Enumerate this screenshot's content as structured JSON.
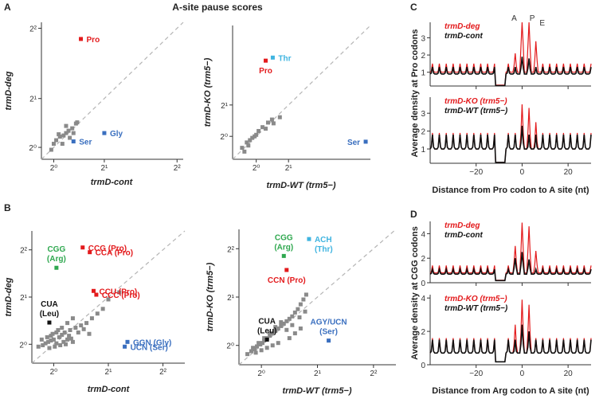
{
  "figure_title": "A-site pause scores",
  "panel_letters": [
    "A",
    "B",
    "C",
    "D"
  ],
  "colors": {
    "pro": "#e31a1c",
    "thr": "#3fb4e0",
    "ser": "#3a6fbf",
    "arg": "#2fa84f",
    "leu": "#111111",
    "grey": "#8a8a8a",
    "diag": "#b5b5b5",
    "ko_line": "#e31a1c",
    "wt_line": "#111111"
  },
  "chart_data": [
    {
      "id": "A1",
      "type": "scatter",
      "xlabel": "trmD-cont",
      "ylabel": "trmD-deg",
      "xlim": [
        0.9,
        2.05
      ],
      "ylim": [
        0.9,
        2.05
      ],
      "xticks": [
        {
          "v": 1,
          "label": "2⁰"
        },
        {
          "v": 1.41,
          "label": "2¹"
        },
        {
          "v": 2,
          "label": "2²"
        }
      ],
      "yticks": [
        {
          "v": 1,
          "label": "2⁰"
        },
        {
          "v": 1.41,
          "label": "2¹"
        },
        {
          "v": 2,
          "label": "2²"
        }
      ],
      "grey_points": [
        [
          0.98,
          0.98
        ],
        [
          1.0,
          1.03
        ],
        [
          1.02,
          1.06
        ],
        [
          1.05,
          1.09
        ],
        [
          1.08,
          1.1
        ],
        [
          1.12,
          1.14
        ],
        [
          1.1,
          1.18
        ],
        [
          1.15,
          1.16
        ],
        [
          1.18,
          1.2
        ],
        [
          1.04,
          1.11
        ],
        [
          1.07,
          1.03
        ],
        [
          1.13,
          1.08
        ],
        [
          1.19,
          1.21
        ],
        [
          1.1,
          1.12
        ],
        [
          1.16,
          1.12
        ]
      ],
      "labeled_points": [
        {
          "label": "Pro",
          "x": 1.22,
          "y": 1.91,
          "color": "#e31a1c",
          "label_pos": "right"
        },
        {
          "label": "Gly",
          "x": 1.41,
          "y": 1.12,
          "color": "#3a6fbf",
          "label_pos": "right"
        },
        {
          "label": "Ser",
          "x": 1.16,
          "y": 1.05,
          "color": "#3a6fbf",
          "label_pos": "right"
        }
      ]
    },
    {
      "id": "A2",
      "type": "scatter",
      "xlabel": "trmD-WT (trm5−)",
      "ylabel": "trmD-KO (trm5−)",
      "xlim": [
        0.7,
        2.45
      ],
      "ylim": [
        0.7,
        2.45
      ],
      "xticks": [
        {
          "v": 1,
          "label": "2⁰"
        },
        {
          "v": 1.41,
          "label": "2¹"
        }
      ],
      "yticks": [
        {
          "v": 1,
          "label": "2⁰"
        },
        {
          "v": 1.41,
          "label": "2¹"
        }
      ],
      "grey_points": [
        [
          0.82,
          0.85
        ],
        [
          0.88,
          0.92
        ],
        [
          0.92,
          0.95
        ],
        [
          0.95,
          0.98
        ],
        [
          0.98,
          1.0
        ],
        [
          1.0,
          1.02
        ],
        [
          0.9,
          0.88
        ],
        [
          1.03,
          1.07
        ],
        [
          1.08,
          1.12
        ],
        [
          1.15,
          1.18
        ],
        [
          1.2,
          1.22
        ],
        [
          1.22,
          1.17
        ],
        [
          1.3,
          1.25
        ],
        [
          0.85,
          0.8
        ],
        [
          1.12,
          1.1
        ]
      ],
      "labeled_points": [
        {
          "label": "Thr",
          "x": 1.21,
          "y": 2.03,
          "color": "#3fb4e0",
          "label_pos": "right"
        },
        {
          "label": "Pro",
          "x": 1.12,
          "y": 1.99,
          "color": "#e31a1c",
          "label_pos": "below"
        },
        {
          "label": "Ser",
          "x": 2.39,
          "y": 0.93,
          "color": "#3a6fbf",
          "label_pos": "left"
        }
      ]
    },
    {
      "id": "B1",
      "type": "scatter",
      "xlabel": "trmD-cont",
      "ylabel": "trmD-deg",
      "xlim": [
        0.6,
        3.4
      ],
      "ylim": [
        0.6,
        3.4
      ],
      "xticks": [
        {
          "v": 1,
          "label": "2⁰"
        },
        {
          "v": 2,
          "label": "2¹"
        },
        {
          "v": 3,
          "label": "2²"
        }
      ],
      "yticks": [
        {
          "v": 1,
          "label": "2⁰"
        },
        {
          "v": 2,
          "label": "2¹"
        },
        {
          "v": 3,
          "label": "2²"
        }
      ],
      "grey_points": [
        [
          0.72,
          0.95
        ],
        [
          0.8,
          0.98
        ],
        [
          0.85,
          1.02
        ],
        [
          0.9,
          1.05
        ],
        [
          0.95,
          1.08
        ],
        [
          1.0,
          1.1
        ],
        [
          1.05,
          1.02
        ],
        [
          1.1,
          1.15
        ],
        [
          1.15,
          1.2
        ],
        [
          1.2,
          1.25
        ],
        [
          1.25,
          1.1
        ],
        [
          1.3,
          1.3
        ],
        [
          1.35,
          1.05
        ],
        [
          1.4,
          1.35
        ],
        [
          1.5,
          1.4
        ],
        [
          1.6,
          1.45
        ],
        [
          1.7,
          1.55
        ],
        [
          1.8,
          1.65
        ],
        [
          1.9,
          1.75
        ],
        [
          2.0,
          1.95
        ],
        [
          2.2,
          2.1
        ],
        [
          0.95,
          1.18
        ],
        [
          1.05,
          1.25
        ],
        [
          1.15,
          1.35
        ],
        [
          1.25,
          1.45
        ],
        [
          1.35,
          1.55
        ],
        [
          0.78,
          1.1
        ],
        [
          0.88,
          1.15
        ],
        [
          0.98,
          1.22
        ],
        [
          1.08,
          1.3
        ],
        [
          1.18,
          1.05
        ],
        [
          1.28,
          1.18
        ],
        [
          1.45,
          1.25
        ],
        [
          1.55,
          1.32
        ],
        [
          1.65,
          1.22
        ],
        [
          0.92,
          0.92
        ],
        [
          1.02,
          0.95
        ],
        [
          1.12,
          0.98
        ],
        [
          1.22,
          1.0
        ],
        [
          1.32,
          1.12
        ]
      ],
      "labeled_points": [
        {
          "label": "CGG",
          "label2": "(Arg)",
          "x": 1.05,
          "y": 2.62,
          "color": "#2fa84f",
          "label_pos": "above"
        },
        {
          "label": "CCG (Pro)",
          "x": 1.53,
          "y": 3.05,
          "color": "#e31a1c",
          "label_pos": "right"
        },
        {
          "label": "CCA (Pro)",
          "x": 1.66,
          "y": 2.95,
          "color": "#e31a1c",
          "label_pos": "right"
        },
        {
          "label": "CCU (Pro)",
          "x": 1.73,
          "y": 2.13,
          "color": "#e31a1c",
          "label_pos": "right"
        },
        {
          "label": "CCC (Pro)",
          "x": 1.78,
          "y": 2.05,
          "color": "#e31a1c",
          "label_pos": "right"
        },
        {
          "label": "CUA",
          "label2": "(Leu)",
          "x": 0.92,
          "y": 1.46,
          "color": "#111111",
          "label_pos": "above"
        },
        {
          "label": "GGN (Gly)",
          "x": 2.35,
          "y": 1.05,
          "color": "#3a6fbf",
          "label_pos": "right"
        },
        {
          "label": "UCN (Ser)",
          "x": 2.3,
          "y": 0.95,
          "color": "#3a6fbf",
          "label_pos": "right"
        }
      ]
    },
    {
      "id": "B2",
      "type": "scatter",
      "xlabel": "trmD-WT (trm5−)",
      "ylabel": "trmD-KO (trm5−)",
      "xlim": [
        0.6,
        3.4
      ],
      "ylim": [
        0.6,
        3.4
      ],
      "xticks": [
        {
          "v": 1,
          "label": "2⁰"
        },
        {
          "v": 2,
          "label": "2¹"
        },
        {
          "v": 3,
          "label": "2²"
        }
      ],
      "yticks": [
        {
          "v": 1,
          "label": "2⁰"
        },
        {
          "v": 2,
          "label": "2¹"
        },
        {
          "v": 3,
          "label": "2²"
        }
      ],
      "grey_points": [
        [
          0.75,
          0.82
        ],
        [
          0.82,
          0.88
        ],
        [
          0.88,
          0.92
        ],
        [
          0.92,
          0.98
        ],
        [
          0.98,
          1.02
        ],
        [
          1.02,
          1.05
        ],
        [
          1.05,
          1.1
        ],
        [
          1.1,
          1.15
        ],
        [
          1.15,
          1.2
        ],
        [
          1.2,
          1.25
        ],
        [
          1.25,
          1.3
        ],
        [
          1.3,
          1.35
        ],
        [
          1.35,
          1.4
        ],
        [
          1.4,
          1.45
        ],
        [
          1.45,
          1.5
        ],
        [
          1.5,
          1.55
        ],
        [
          1.55,
          1.6
        ],
        [
          1.6,
          1.68
        ],
        [
          1.65,
          1.75
        ],
        [
          1.7,
          1.85
        ],
        [
          1.75,
          1.95
        ],
        [
          1.8,
          2.05
        ],
        [
          0.85,
          0.95
        ],
        [
          0.95,
          1.05
        ],
        [
          1.05,
          1.15
        ],
        [
          1.15,
          1.25
        ],
        [
          1.25,
          1.38
        ],
        [
          1.35,
          1.48
        ],
        [
          1.45,
          1.32
        ],
        [
          1.55,
          1.42
        ],
        [
          0.9,
          0.85
        ],
        [
          1.0,
          0.9
        ],
        [
          1.1,
          0.95
        ],
        [
          1.2,
          1.0
        ],
        [
          1.3,
          1.05
        ],
        [
          1.5,
          1.15
        ],
        [
          1.6,
          1.25
        ],
        [
          1.7,
          1.35
        ],
        [
          1.78,
          1.7
        ],
        [
          1.68,
          1.58
        ]
      ],
      "labeled_points": [
        {
          "label": "ACH",
          "label2": "(Thr)",
          "x": 1.85,
          "y": 3.2,
          "color": "#3fb4e0",
          "label_pos": "right"
        },
        {
          "label": "CGG",
          "label2": "(Arg)",
          "x": 1.4,
          "y": 2.85,
          "color": "#2fa84f",
          "label_pos": "above"
        },
        {
          "label": "CCN (Pro)",
          "x": 1.45,
          "y": 2.56,
          "color": "#e31a1c",
          "label_pos": "below"
        },
        {
          "label": "CUA",
          "label2": "(Leu)",
          "x": 1.1,
          "y": 1.12,
          "color": "#111111",
          "label_pos": "above"
        },
        {
          "label": "AGY/UCN",
          "label2": "(Ser)",
          "x": 2.2,
          "y": 1.1,
          "color": "#3a6fbf",
          "label_pos": "above"
        }
      ]
    },
    {
      "id": "C1",
      "type": "line",
      "ylabel": "Average density at Pro codons",
      "xlabel": "",
      "xlim": [
        -40,
        30
      ],
      "ylim": [
        0.2,
        3.9
      ],
      "yticks": [
        1,
        2,
        3
      ],
      "xticks": [
        -20,
        0,
        20
      ],
      "legend": [
        "trmD-deg",
        "trmD-cont"
      ],
      "peak_labels": [
        {
          "label": "A",
          "x": 0
        },
        {
          "label": "P",
          "x": 3
        },
        {
          "label": "E",
          "x": 6
        }
      ],
      "series": [
        {
          "name": "trmD-deg",
          "color": "#e31a1c",
          "amp": 0.5,
          "base": 1.0,
          "peaks": [
            [
              0,
              2.9
            ],
            [
              3,
              2.7
            ],
            [
              6,
              1.3
            ],
            [
              -3,
              0.6
            ]
          ]
        },
        {
          "name": "trmD-cont",
          "color": "#111111",
          "amp": 0.4,
          "base": 0.9,
          "peaks": [
            [
              0,
              0.6
            ],
            [
              3,
              0.5
            ]
          ]
        }
      ]
    },
    {
      "id": "C2",
      "type": "line",
      "ylabel": "",
      "xlabel": "Distance from Pro codon to A site (nt)",
      "xlim": [
        -40,
        30
      ],
      "ylim": [
        0.2,
        3.9
      ],
      "yticks": [
        1,
        2,
        3
      ],
      "xticks": [
        -20,
        0,
        20
      ],
      "tick_labels": [
        "−20",
        "0",
        "20"
      ],
      "legend": [
        "trmD-KO (trm5−)",
        "trmD-WT (trm5−)"
      ],
      "series": [
        {
          "name": "trmD-KO (trm5−)",
          "color": "#e31a1c",
          "amp": 0.9,
          "base": 1.0,
          "peaks": [
            [
              0,
              1.6
            ],
            [
              3,
              1.4
            ],
            [
              6,
              0.6
            ]
          ]
        },
        {
          "name": "trmD-WT (trm5−)",
          "color": "#111111",
          "amp": 0.8,
          "base": 1.0,
          "peaks": [
            [
              0,
              0.5
            ]
          ]
        }
      ]
    },
    {
      "id": "D1",
      "type": "line",
      "ylabel": "Average density at CGG codons",
      "xlabel": "",
      "xlim": [
        -40,
        30
      ],
      "ylim": [
        0,
        5
      ],
      "yticks": [
        0,
        2,
        4
      ],
      "xticks": [
        -20,
        0,
        20
      ],
      "legend": [
        "trmD-deg",
        "trmD-cont"
      ],
      "series": [
        {
          "name": "trmD-deg",
          "color": "#e31a1c",
          "amp": 0.6,
          "base": 0.8,
          "peaks": [
            [
              0,
              3.5
            ],
            [
              3,
              3.2
            ],
            [
              -3,
              1.6
            ],
            [
              6,
              1.2
            ]
          ]
        },
        {
          "name": "trmD-cont",
          "color": "#111111",
          "amp": 0.4,
          "base": 0.7,
          "peaks": [
            [
              0,
              1.4
            ],
            [
              -3,
              0.9
            ],
            [
              3,
              0.8
            ]
          ]
        }
      ]
    },
    {
      "id": "D2",
      "type": "line",
      "ylabel": "",
      "xlabel": "Distance from Arg codon to A site (nt)",
      "xlim": [
        -40,
        30
      ],
      "ylim": [
        0,
        4.2
      ],
      "yticks": [
        0,
        2,
        4
      ],
      "xticks": [
        -20,
        0,
        20
      ],
      "tick_labels": [
        "−20",
        "0",
        "20"
      ],
      "legend": [
        "trmD-KO (trm5−)",
        "trmD-WT (trm5−)"
      ],
      "series": [
        {
          "name": "trmD-KO (trm5−)",
          "color": "#e31a1c",
          "amp": 0.9,
          "base": 0.7,
          "peaks": [
            [
              0,
              2.3
            ],
            [
              3,
              2.0
            ],
            [
              -3,
              0.8
            ]
          ]
        },
        {
          "name": "trmD-WT (trm5−)",
          "color": "#111111",
          "amp": 0.8,
          "base": 0.7,
          "peaks": [
            [
              0,
              0.9
            ],
            [
              3,
              0.5
            ]
          ]
        }
      ]
    }
  ]
}
